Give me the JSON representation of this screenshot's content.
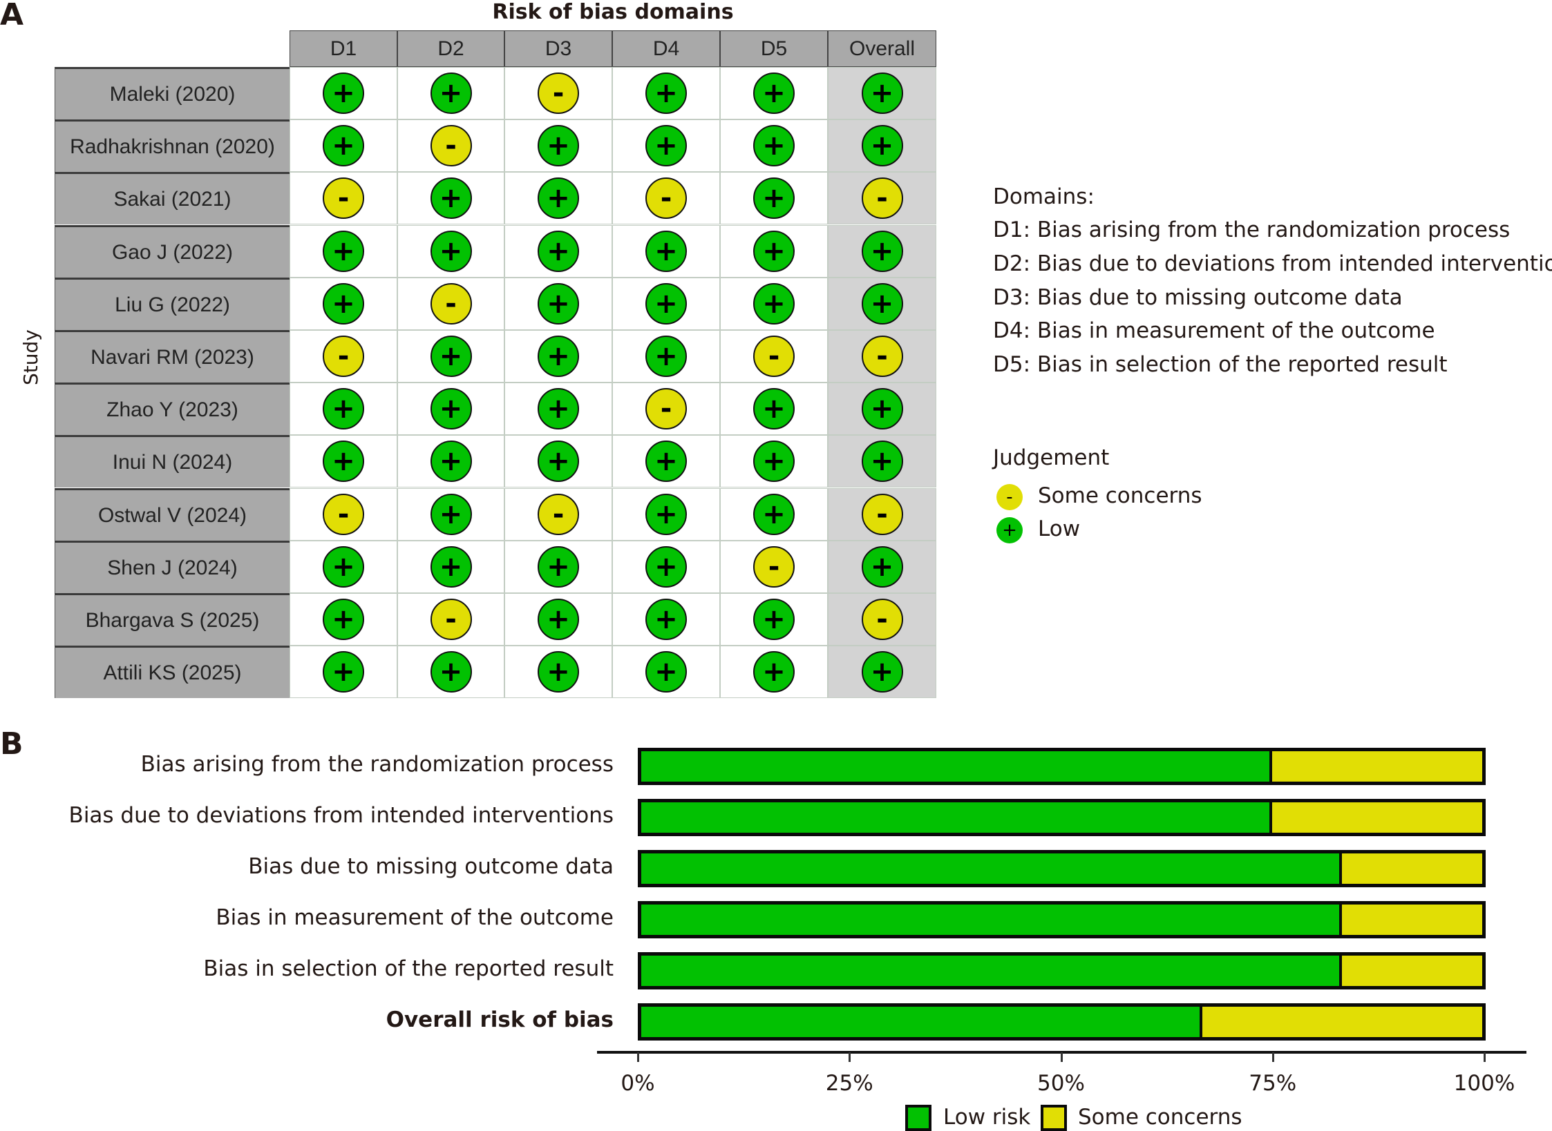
{
  "panel_a": {
    "letter": "A",
    "title": "Risk of bias domains",
    "y_label": "Study",
    "columns": [
      "D1",
      "D2",
      "D3",
      "D4",
      "D5",
      "Overall"
    ],
    "symbols": {
      "low": "+",
      "some": "-"
    },
    "studies": [
      {
        "name": "Maleki (2020)",
        "j": [
          "low",
          "low",
          "some",
          "low",
          "low",
          "low"
        ]
      },
      {
        "name": "Radhakrishnan (2020)",
        "j": [
          "low",
          "some",
          "low",
          "low",
          "low",
          "low"
        ]
      },
      {
        "name": "Sakai (2021)",
        "j": [
          "some",
          "low",
          "low",
          "some",
          "low",
          "some"
        ]
      },
      {
        "name": "Gao J (2022)",
        "j": [
          "low",
          "low",
          "low",
          "low",
          "low",
          "low"
        ]
      },
      {
        "name": "Liu G (2022)",
        "j": [
          "low",
          "some",
          "low",
          "low",
          "low",
          "low"
        ]
      },
      {
        "name": "Navari RM (2023)",
        "j": [
          "some",
          "low",
          "low",
          "low",
          "some",
          "some"
        ]
      },
      {
        "name": "Zhao Y (2023)",
        "j": [
          "low",
          "low",
          "low",
          "some",
          "low",
          "low"
        ]
      },
      {
        "name": "Inui N (2024)",
        "j": [
          "low",
          "low",
          "low",
          "low",
          "low",
          "low"
        ]
      },
      {
        "name": "Ostwal V (2024)",
        "j": [
          "some",
          "low",
          "some",
          "low",
          "low",
          "some"
        ]
      },
      {
        "name": "Shen J (2024)",
        "j": [
          "low",
          "low",
          "low",
          "low",
          "some",
          "low"
        ]
      },
      {
        "name": "Bhargava S (2025)",
        "j": [
          "low",
          "some",
          "low",
          "low",
          "low",
          "some"
        ]
      },
      {
        "name": "Attili KS (2025)",
        "j": [
          "low",
          "low",
          "low",
          "low",
          "low",
          "low"
        ]
      }
    ],
    "legend": {
      "domains_title": "Domains:",
      "domains": [
        "D1: Bias arising from the randomization process",
        "D2: Bias due to deviations from intended intervention",
        "D3: Bias due to missing outcome data",
        "D4: Bias in measurement of the outcome",
        "D5: Bias in selection of the reported result"
      ],
      "judgement_title": "Judgement",
      "judgements": [
        {
          "key": "some",
          "symbol": "-",
          "label": "Some concerns"
        },
        {
          "key": "low",
          "symbol": "+",
          "label": "Low"
        }
      ]
    }
  },
  "panel_b": {
    "letter": "B"
  },
  "colors": {
    "low": "#02c102",
    "some": "#e1de05",
    "header_gray": "#a9a9a9",
    "overall_bg": "#d3d3d3"
  },
  "chart_data": [
    {
      "type": "table",
      "title": "Risk of bias domains",
      "ylabel": "Study",
      "columns": [
        "D1",
        "D2",
        "D3",
        "D4",
        "D5",
        "Overall"
      ],
      "rows": [
        [
          "Maleki (2020)",
          "Low",
          "Low",
          "Some concerns",
          "Low",
          "Low",
          "Low"
        ],
        [
          "Radhakrishnan (2020)",
          "Low",
          "Some concerns",
          "Low",
          "Low",
          "Low",
          "Low"
        ],
        [
          "Sakai (2021)",
          "Some concerns",
          "Low",
          "Low",
          "Some concerns",
          "Low",
          "Some concerns"
        ],
        [
          "Gao J (2022)",
          "Low",
          "Low",
          "Low",
          "Low",
          "Low",
          "Low"
        ],
        [
          "Liu G (2022)",
          "Low",
          "Some concerns",
          "Low",
          "Low",
          "Low",
          "Low"
        ],
        [
          "Navari RM (2023)",
          "Some concerns",
          "Low",
          "Low",
          "Low",
          "Some concerns",
          "Some concerns"
        ],
        [
          "Zhao Y (2023)",
          "Low",
          "Low",
          "Low",
          "Some concerns",
          "Low",
          "Low"
        ],
        [
          "Inui N (2024)",
          "Low",
          "Low",
          "Low",
          "Low",
          "Low",
          "Low"
        ],
        [
          "Ostwal V (2024)",
          "Some concerns",
          "Low",
          "Some concerns",
          "Low",
          "Low",
          "Some concerns"
        ],
        [
          "Shen J (2024)",
          "Low",
          "Low",
          "Low",
          "Low",
          "Some concerns",
          "Low"
        ],
        [
          "Bhargava S (2025)",
          "Low",
          "Some concerns",
          "Low",
          "Low",
          "Low",
          "Some concerns"
        ],
        [
          "Attili KS (2025)",
          "Low",
          "Low",
          "Low",
          "Low",
          "Low",
          "Low"
        ]
      ],
      "legend": [
        "Some concerns (-)",
        "Low (+)"
      ]
    },
    {
      "type": "bar",
      "orientation": "horizontal",
      "stacked": true,
      "categories": [
        "Bias arising from the randomization process",
        "Bias due to deviations from intended interventions",
        "Bias due to missing outcome data",
        "Bias in measurement of the outcome",
        "Bias in selection of the reported result",
        "Overall risk of bias"
      ],
      "series": [
        {
          "name": "Low risk",
          "color": "#02c102",
          "values": [
            75,
            75,
            83.3,
            83.3,
            83.3,
            66.7
          ]
        },
        {
          "name": "Some concerns",
          "color": "#e1de05",
          "values": [
            25,
            25,
            16.7,
            16.7,
            16.7,
            33.3
          ]
        }
      ],
      "xlim": [
        0,
        100
      ],
      "xticks": [
        "0%",
        "25%",
        "50%",
        "75%",
        "100%"
      ],
      "legend_position": "bottom",
      "grid": false
    }
  ],
  "bar_chart": {
    "bars": [
      {
        "label": "Bias arising from the randomization process",
        "low": 75,
        "bold": false
      },
      {
        "label": "Bias due to deviations from intended interventions",
        "low": 75,
        "bold": false
      },
      {
        "label": "Bias due to missing outcome data",
        "low": 83.3,
        "bold": false
      },
      {
        "label": "Bias in measurement of the outcome",
        "low": 83.3,
        "bold": false
      },
      {
        "label": "Bias in selection of the reported result",
        "low": 83.3,
        "bold": false
      },
      {
        "label": "Overall risk of bias",
        "low": 66.7,
        "bold": true
      }
    ],
    "ticks": [
      "0%",
      "25%",
      "50%",
      "75%",
      "100%"
    ],
    "legend": [
      {
        "key": "low",
        "label": "Low risk"
      },
      {
        "key": "some",
        "label": "Some concerns"
      }
    ]
  }
}
